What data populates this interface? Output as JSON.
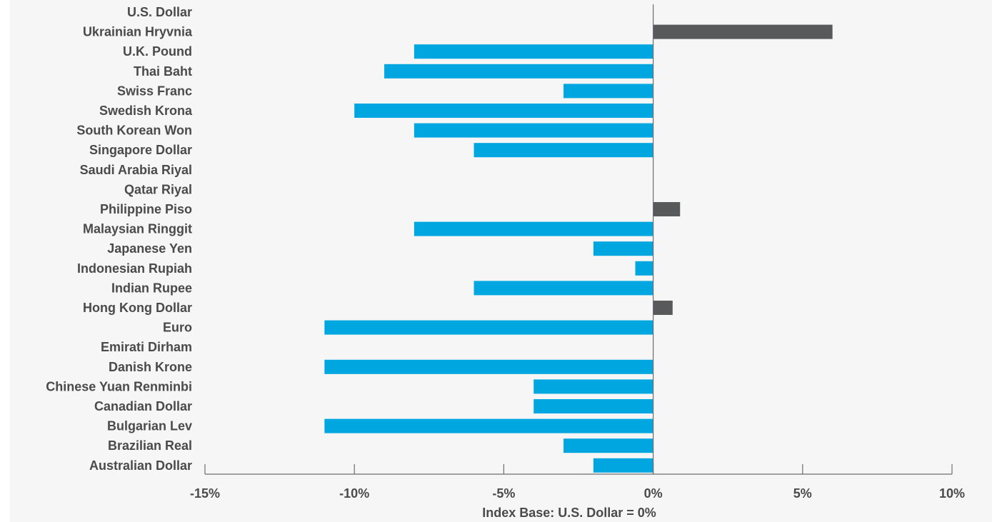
{
  "chart_data": {
    "type": "bar",
    "orientation": "horizontal",
    "categories": [
      "U.S. Dollar",
      "Ukrainian Hryvnia",
      "U.K. Pound",
      "Thai Baht",
      "Swiss Franc",
      "Swedish Krona",
      "South Korean Won",
      "Singapore Dollar",
      "Saudi Arabia Riyal",
      "Qatar Riyal",
      "Philippine Piso",
      "Malaysian Ringgit",
      "Japanese Yen",
      "Indonesian Rupiah",
      "Indian Rupee",
      "Hong Kong Dollar",
      "Euro",
      "Emirati Dirham",
      "Danish Krone",
      "Chinese Yuan Renminbi",
      "Canadian Dollar",
      "Bulgarian Lev",
      "Brazilian Real",
      "Australian Dollar"
    ],
    "values": [
      0,
      6.0,
      -8.0,
      -9.0,
      -3.0,
      -10.0,
      -8.0,
      -6.0,
      0,
      0,
      0.9,
      -8.0,
      -2.0,
      -0.6,
      -6.0,
      0.65,
      -11.0,
      0,
      -11.0,
      -4.0,
      -4.0,
      -11.0,
      -3.0,
      -2.0
    ],
    "xlim": [
      -15,
      10
    ],
    "xticks": [
      -15,
      -10,
      -5,
      0,
      5,
      10
    ],
    "xtick_labels": [
      "-15%",
      "-10%",
      "-5%",
      "0%",
      "5%",
      "10%"
    ],
    "xlabel": "Index Base: U.S. Dollar = 0%",
    "title": "",
    "grid": false,
    "colors": {
      "negative": "#00a6e0",
      "positive": "#58595b",
      "axis": "#6d6d6d",
      "text": "#4a4a4a",
      "background": "#f6f6f6"
    }
  }
}
